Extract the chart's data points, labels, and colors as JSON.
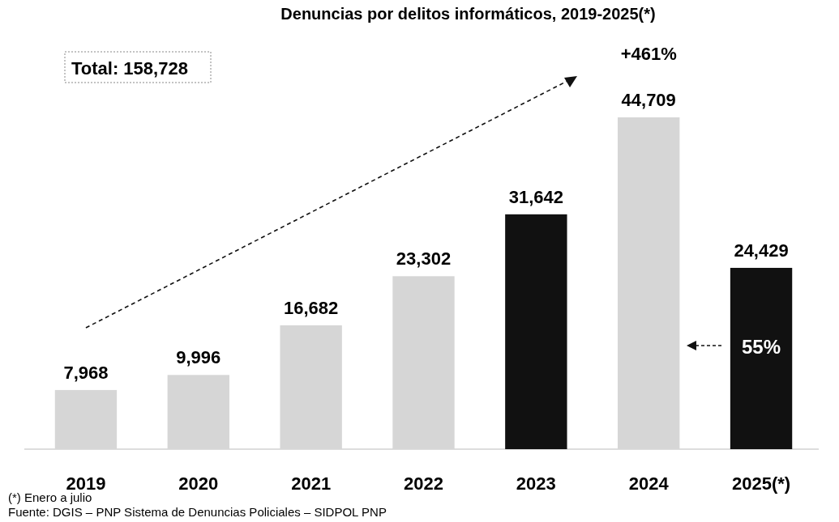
{
  "chart_data": {
    "type": "bar",
    "title": "Denuncias por delitos informáticos, 2019-2025(*)",
    "categories": [
      "2019",
      "2020",
      "2021",
      "2022",
      "2023",
      "2024",
      "2025(*)"
    ],
    "values": [
      7968,
      9996,
      16682,
      23302,
      31642,
      44709,
      24429
    ],
    "colors": [
      "#d6d6d6",
      "#d6d6d6",
      "#d6d6d6",
      "#d6d6d6",
      "#111111",
      "#d6d6d6",
      "#111111"
    ],
    "value_labels": [
      "7,968",
      "9,996",
      "16,682",
      "23,302",
      "31,642",
      "44,709",
      "24,429"
    ],
    "annotations": [
      "Total: 158,728",
      "+461%",
      "55%",
      "(*) Enero a julio",
      "Fuente: DGIS – PNP Sistema de Denuncias Policiales – SIDPOL PNP"
    ]
  }
}
